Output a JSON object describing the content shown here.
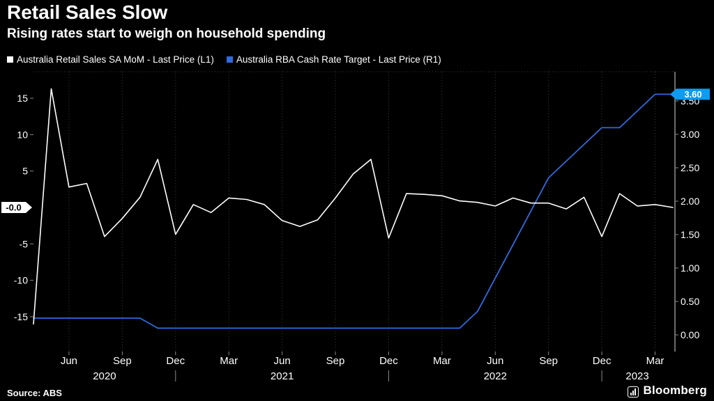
{
  "header": {
    "title": "Retail Sales Slow",
    "subtitle": "Rising rates start to weigh on household spending"
  },
  "legend": [
    {
      "label": "Australia Retail Sales SA MoM - Last Price (L1)",
      "color": "#ffffff"
    },
    {
      "label": "Australia RBA Cash Rate Target - Last Price (R1)",
      "color": "#2f6be0"
    }
  ],
  "footer": {
    "source": "Source: ABS",
    "brand": "Bloomberg"
  },
  "colors": {
    "background": "#000000",
    "grid": "#3d3d3d",
    "axis_text": "#ffffff",
    "retail_line": "#ffffff",
    "rate_line": "#2f6be0",
    "left_badge_bg": "#ffffff",
    "right_badge_bg": "#0e9bf0"
  },
  "chart_data": {
    "type": "line",
    "title": "Retail Sales Slow",
    "subtitle": "Rising rates start to weigh on household spending",
    "grid": "dotted vertical gridlines at month ticks, dotted top border, black background",
    "legend_position": "top-left",
    "x": [
      "2020-04",
      "2020-05",
      "2020-06",
      "2020-07",
      "2020-08",
      "2020-09",
      "2020-10",
      "2020-11",
      "2020-12",
      "2021-01",
      "2021-02",
      "2021-03",
      "2021-04",
      "2021-05",
      "2021-06",
      "2021-07",
      "2021-08",
      "2021-09",
      "2021-10",
      "2021-11",
      "2021-12",
      "2022-01",
      "2022-02",
      "2022-03",
      "2022-04",
      "2022-05",
      "2022-06",
      "2022-07",
      "2022-08",
      "2022-09",
      "2022-10",
      "2022-11",
      "2022-12",
      "2023-01",
      "2023-02",
      "2023-03",
      "2023-04"
    ],
    "series": [
      {
        "id": "retail-sales",
        "name": "Australia Retail Sales SA MoM",
        "axis": "left",
        "unit": "% MoM",
        "color": "#ffffff",
        "width": 1.6,
        "values": [
          -16.0,
          16.3,
          2.8,
          3.3,
          -4.0,
          -1.5,
          1.4,
          6.6,
          -3.7,
          0.4,
          -0.7,
          1.3,
          1.1,
          0.4,
          -1.8,
          -2.6,
          -1.7,
          1.3,
          4.6,
          6.6,
          -4.2,
          1.9,
          1.8,
          1.6,
          0.9,
          0.7,
          0.2,
          1.3,
          0.6,
          0.6,
          -0.2,
          1.4,
          -4.0,
          1.9,
          0.2,
          0.4,
          -0.0
        ],
        "last_price": {
          "label": "-0.0",
          "value": -0.0
        }
      },
      {
        "id": "cash-rate",
        "name": "Australia RBA Cash Rate Target",
        "axis": "right",
        "unit": "%",
        "color": "#2f6be0",
        "width": 1.8,
        "values": [
          0.25,
          0.25,
          0.25,
          0.25,
          0.25,
          0.25,
          0.25,
          0.1,
          0.1,
          0.1,
          0.1,
          0.1,
          0.1,
          0.1,
          0.1,
          0.1,
          0.1,
          0.1,
          0.1,
          0.1,
          0.1,
          0.1,
          0.1,
          0.1,
          0.1,
          0.35,
          0.85,
          1.35,
          1.85,
          2.35,
          2.6,
          2.85,
          3.1,
          3.1,
          3.35,
          3.6,
          3.6
        ],
        "last_price": {
          "label": "3.60",
          "value": 3.6
        }
      }
    ],
    "left_axis": {
      "range": [
        -19.79,
        18.64
      ],
      "ticks": [
        {
          "label": "15",
          "value": 15
        },
        {
          "label": "10",
          "value": 10
        },
        {
          "label": "5",
          "value": 5
        },
        {
          "label": "-5",
          "value": -5
        },
        {
          "label": "-10",
          "value": -10
        },
        {
          "label": "-15",
          "value": -15
        }
      ]
    },
    "right_axis": {
      "range": [
        -0.25,
        3.9375
      ],
      "ticks": [
        {
          "label": "3.50",
          "value": 3.5
        },
        {
          "label": "3.00",
          "value": 3.0
        },
        {
          "label": "2.50",
          "value": 2.5
        },
        {
          "label": "2.00",
          "value": 2.0
        },
        {
          "label": "1.50",
          "value": 1.5
        },
        {
          "label": "1.00",
          "value": 1.0
        },
        {
          "label": "0.50",
          "value": 0.5
        },
        {
          "label": "0.00",
          "value": 0.0
        }
      ]
    },
    "x_ticks": [
      {
        "label": "Jun",
        "index": 2
      },
      {
        "label": "Sep",
        "index": 5
      },
      {
        "label": "Dec",
        "index": 8
      },
      {
        "label": "Mar",
        "index": 11
      },
      {
        "label": "Jun",
        "index": 14
      },
      {
        "label": "Sep",
        "index": 17
      },
      {
        "label": "Dec",
        "index": 20
      },
      {
        "label": "Mar",
        "index": 23
      },
      {
        "label": "Jun",
        "index": 26
      },
      {
        "label": "Sep",
        "index": 29
      },
      {
        "label": "Dec",
        "index": 32
      },
      {
        "label": "Mar",
        "index": 35
      }
    ],
    "year_labels": [
      {
        "label": "2020",
        "index": 4
      },
      {
        "label": "2021",
        "index": 14
      },
      {
        "label": "2022",
        "index": 26
      },
      {
        "label": "2023",
        "index": 34
      }
    ],
    "year_dividers": [
      8,
      20,
      32
    ]
  }
}
